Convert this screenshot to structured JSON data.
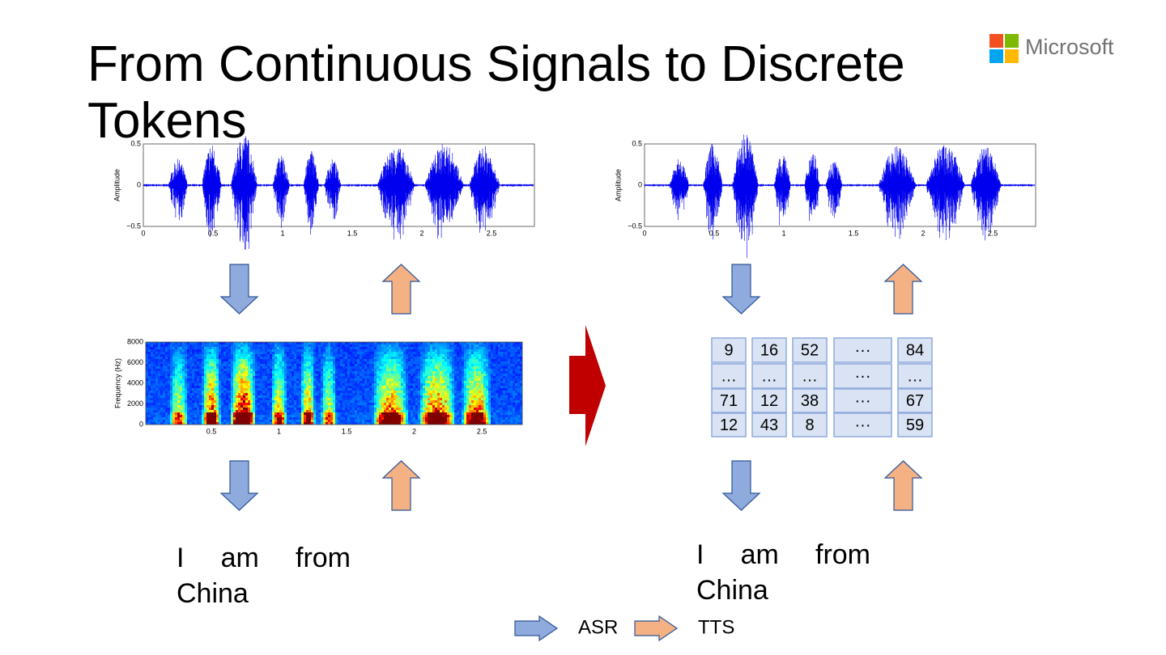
{
  "title": "From Continuous Signals to Discrete Tokens",
  "logo": "Microsoft",
  "waveform_plot": {
    "ylabel": "Amplitude",
    "yticks": [
      "0.5",
      "0",
      "−0.5"
    ],
    "xticks": [
      "0",
      "0.5",
      "1",
      "1.5",
      "2",
      "2.5"
    ]
  },
  "spectrogram_plot": {
    "ylabel": "Frequency (Hz)",
    "yticks": [
      "8000",
      "6000",
      "4000",
      "2000",
      "0"
    ],
    "xticks": [
      "0.5",
      "1",
      "1.5",
      "2",
      "2.5"
    ]
  },
  "token_table": {
    "rows": [
      [
        "9",
        "16",
        "52",
        "···",
        "84"
      ],
      [
        "…",
        "…",
        "…",
        "···",
        "…"
      ],
      [
        "71",
        "12",
        "38",
        "···",
        "67"
      ],
      [
        "12",
        "43",
        "8",
        "···",
        "59"
      ]
    ]
  },
  "left_text": "I am from China",
  "right_text": "I am from China",
  "legend": [
    "ASR",
    "TTS"
  ]
}
